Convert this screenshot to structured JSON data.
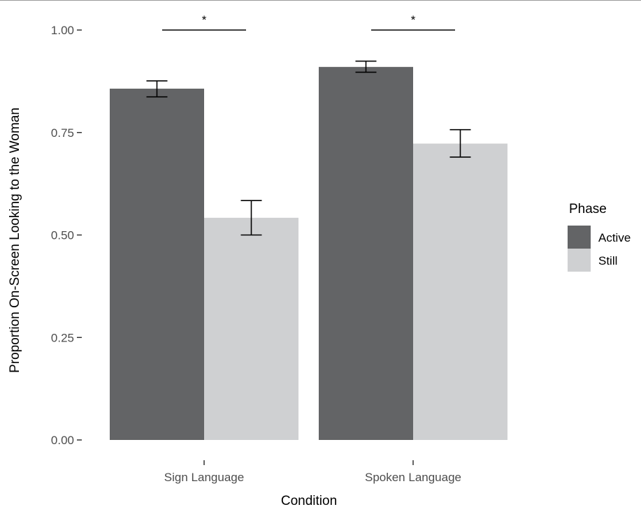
{
  "chart_data": {
    "type": "bar",
    "title": "",
    "xlabel": "Condition",
    "ylabel": "Proportion On-Screen Looking to the Woman",
    "categories": [
      "Sign Language",
      "Spoken Language"
    ],
    "series": [
      {
        "name": "Active",
        "color": "#636466",
        "values": [
          0.857,
          0.91
        ],
        "error_low": [
          0.837,
          0.897
        ],
        "error_high": [
          0.876,
          0.924
        ]
      },
      {
        "name": "Still",
        "color": "#cfd0d2",
        "values": [
          0.542,
          0.723
        ],
        "error_low": [
          0.5,
          0.69
        ],
        "error_high": [
          0.584,
          0.757
        ]
      }
    ],
    "yticks": [
      0.0,
      0.25,
      0.5,
      0.75,
      1.0
    ],
    "ytick_labels": [
      "0.00",
      "0.25",
      "0.50",
      "0.75",
      "1.00"
    ],
    "ylim": [
      0,
      1.05
    ],
    "grid": false,
    "legend": {
      "title": "Phase",
      "position": "right",
      "entries": [
        "Active",
        "Still"
      ]
    },
    "annotations": [
      {
        "category": "Sign Language",
        "text": "*",
        "y": 1.0
      },
      {
        "category": "Spoken Language",
        "text": "*",
        "y": 1.0
      }
    ]
  }
}
